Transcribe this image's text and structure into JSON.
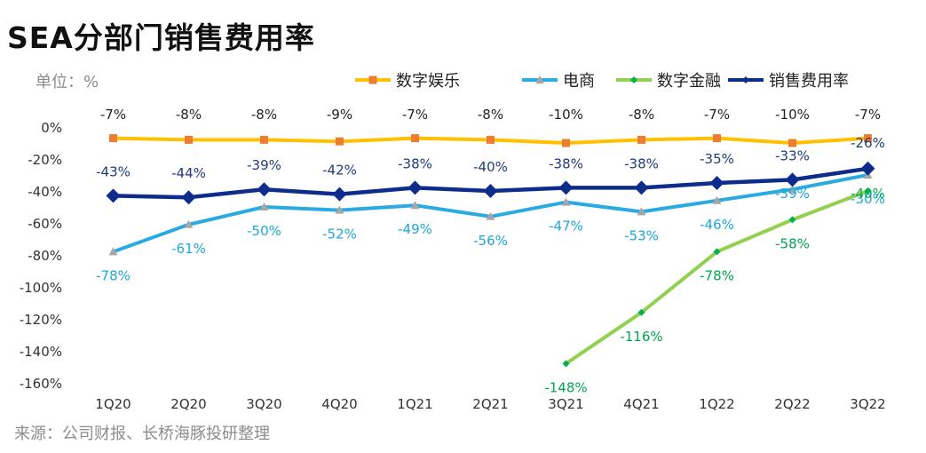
{
  "title": "SEA分部门销售费用率",
  "unit_label": "单位：%",
  "source": "来源：公司财报、长桥海豚投研整理",
  "chart_data": {
    "type": "line",
    "title": "SEA分部门销售费用率",
    "xlabel": "",
    "ylabel": "",
    "categories": [
      "1Q20",
      "2Q20",
      "3Q20",
      "4Q20",
      "1Q21",
      "2Q21",
      "3Q21",
      "4Q21",
      "1Q22",
      "2Q22",
      "3Q22"
    ],
    "ylim": [
      -160,
      0
    ],
    "yticks": [
      0,
      -20,
      -40,
      -60,
      -80,
      -100,
      -120,
      -140,
      -160
    ],
    "ytick_labels": [
      "0%",
      "-20%",
      "-40%",
      "-60%",
      "-80%",
      "-100%",
      "-120%",
      "-140%",
      "-160%"
    ],
    "legend_position": "top",
    "series": [
      {
        "name": "数字娱乐",
        "color": "#FFC000",
        "marker": "square",
        "marker_color": "#ED7D31",
        "values": [
          -7,
          -8,
          -8,
          -9,
          -7,
          -8,
          -10,
          -8,
          -7,
          -10,
          -7
        ],
        "labels": [
          "-7%",
          "-8%",
          "-8%",
          "-9%",
          "-7%",
          "-8%",
          "-10%",
          "-8%",
          "-7%",
          "-10%",
          "-7%"
        ],
        "label_color": "#222222"
      },
      {
        "name": "电商",
        "color": "#29ABE2",
        "marker": "triangle",
        "marker_color": "#A6A6A6",
        "values": [
          -78,
          -61,
          -50,
          -52,
          -49,
          -56,
          -47,
          -53,
          -46,
          -39,
          -30
        ],
        "labels": [
          "-78%",
          "-61%",
          "-50%",
          "-52%",
          "-49%",
          "-56%",
          "-47%",
          "-53%",
          "-46%",
          "-39%",
          "-30%"
        ],
        "label_color": "#1CA8D8"
      },
      {
        "name": "数字金融",
        "color": "#92D050",
        "marker": "diamond",
        "marker_color": "#00B050",
        "values": [
          null,
          null,
          null,
          null,
          null,
          null,
          -148,
          -116,
          -78,
          -58,
          -40
        ],
        "labels": [
          "",
          "",
          "",
          "",
          "",
          "",
          "-148%",
          "-116%",
          "-78%",
          "-58%",
          "-40%"
        ],
        "label_color": "#00A651"
      },
      {
        "name": "销售费用率",
        "color": "#0D2C8C",
        "marker": "diamond",
        "marker_color": "#0D2C8C",
        "values": [
          -43,
          -44,
          -39,
          -42,
          -38,
          -40,
          -38,
          -38,
          -35,
          -33,
          -26
        ],
        "labels": [
          "-43%",
          "-44%",
          "-39%",
          "-42%",
          "-38%",
          "-40%",
          "-38%",
          "-38%",
          "-35%",
          "-33%",
          "-26%"
        ],
        "label_color": "#1F3B7A"
      }
    ]
  }
}
